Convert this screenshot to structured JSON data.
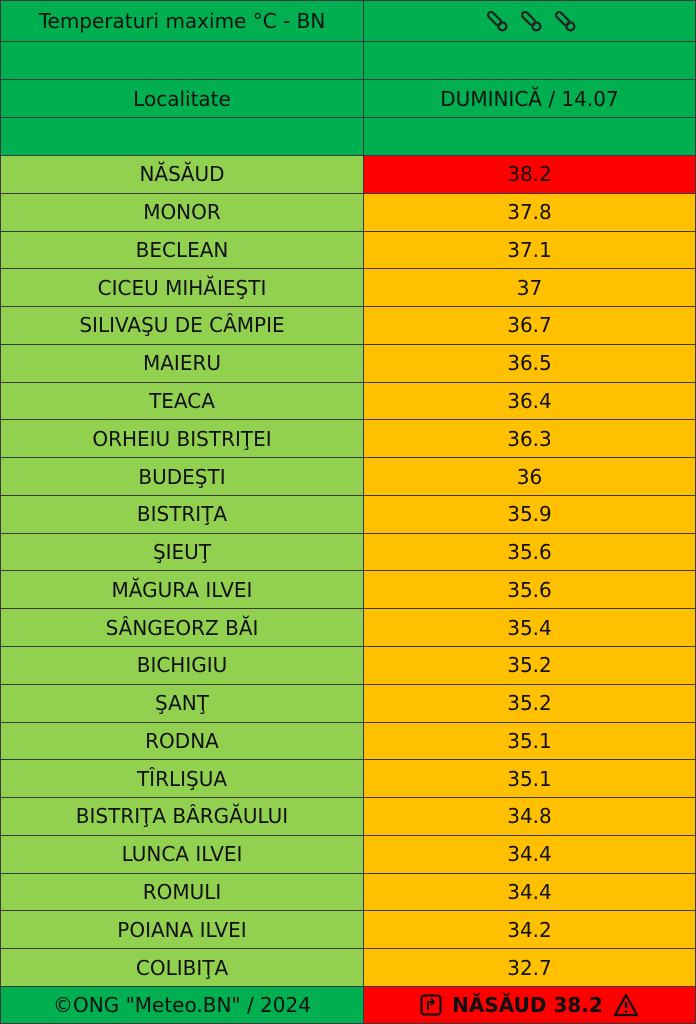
{
  "header": {
    "title": "Temperaturi maxime °C  - BN",
    "column_labels": [
      "Localitate",
      "DUMINICĂ / 14.07"
    ]
  },
  "rows": [
    {
      "name": "NĂSĂUD",
      "value": 38.2,
      "color": "#ff0000"
    },
    {
      "name": "MONOR",
      "value": 37.8,
      "color": "#ffc000"
    },
    {
      "name": "BECLEAN",
      "value": 37.1,
      "color": "#ffc000"
    },
    {
      "name": "CICEU MIHĂIEŞTI",
      "value": 37,
      "color": "#ffc000"
    },
    {
      "name": "SILIVAŞU DE CÂMPIE",
      "value": 36.7,
      "color": "#ffc000"
    },
    {
      "name": "MAIERU",
      "value": 36.5,
      "color": "#ffc000"
    },
    {
      "name": "TEACA",
      "value": 36.4,
      "color": "#ffc000"
    },
    {
      "name": "ORHEIU BISTRIŢEI",
      "value": 36.3,
      "color": "#ffc000"
    },
    {
      "name": "BUDEŞTI",
      "value": 36,
      "color": "#ffc000"
    },
    {
      "name": "BISTRIŢA",
      "value": 35.9,
      "color": "#ffc000"
    },
    {
      "name": "ŞIEUŢ",
      "value": 35.6,
      "color": "#ffc000"
    },
    {
      "name": "MĂGURA ILVEI",
      "value": 35.6,
      "color": "#ffc000"
    },
    {
      "name": "SÂNGEORZ BĂI",
      "value": 35.4,
      "color": "#ffc000"
    },
    {
      "name": "BICHIGIU",
      "value": 35.2,
      "color": "#ffc000"
    },
    {
      "name": "ŞANŢ",
      "value": 35.2,
      "color": "#ffc000"
    },
    {
      "name": "RODNA",
      "value": 35.1,
      "color": "#ffc000"
    },
    {
      "name": "TÎRLIŞUA",
      "value": 35.1,
      "color": "#ffc000"
    },
    {
      "name": "BISTRIŢA BÂRGĂULUI",
      "value": 34.8,
      "color": "#ffc000"
    },
    {
      "name": "LUNCA ILVEI",
      "value": 34.4,
      "color": "#ffc000"
    },
    {
      "name": "ROMULI",
      "value": 34.4,
      "color": "#ffc000"
    },
    {
      "name": "POIANA ILVEI",
      "value": 34.2,
      "color": "#ffc000"
    },
    {
      "name": "COLIBIŢA",
      "value": 32.7,
      "color": "#ffc000"
    }
  ],
  "footer": {
    "credit": "©ONG \"Meteo.BN\" / 2024",
    "highlight": "NĂSĂUD 38.2"
  }
}
